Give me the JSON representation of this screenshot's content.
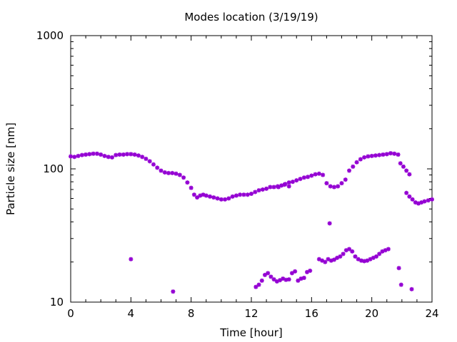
{
  "chart_data": {
    "type": "scatter",
    "title": "Modes location (3/19/19)",
    "xlabel": "Time [hour]",
    "ylabel": "Particle size [nm]",
    "xlim": [
      0,
      24
    ],
    "ylim": [
      10,
      1000
    ],
    "yscale": "log",
    "grid": false,
    "legend": "none",
    "x_ticks": [
      {
        "value": 0,
        "label": "0"
      },
      {
        "value": 4,
        "label": "4"
      },
      {
        "value": 8,
        "label": "8"
      },
      {
        "value": 12,
        "label": "12"
      },
      {
        "value": 16,
        "label": "16"
      },
      {
        "value": 20,
        "label": "20"
      },
      {
        "value": 24,
        "label": "24"
      }
    ],
    "y_ticks": [
      {
        "value": 10,
        "label": "10"
      },
      {
        "value": 100,
        "label": "100"
      },
      {
        "value": 1000,
        "label": "1000"
      }
    ],
    "marker_color": "#9400d3",
    "series": [
      {
        "points": [
          [
            0.0,
            124
          ],
          [
            0.25,
            123
          ],
          [
            0.5,
            125
          ],
          [
            0.75,
            127
          ],
          [
            1.0,
            128
          ],
          [
            1.25,
            129
          ],
          [
            1.5,
            130
          ],
          [
            1.75,
            130
          ],
          [
            2.0,
            128
          ],
          [
            2.25,
            125
          ],
          [
            2.5,
            123
          ],
          [
            2.75,
            122
          ],
          [
            3.0,
            127
          ],
          [
            3.25,
            128
          ],
          [
            3.5,
            128
          ],
          [
            3.75,
            129
          ],
          [
            4.0,
            129
          ],
          [
            4.25,
            128
          ],
          [
            4.5,
            126
          ],
          [
            4.75,
            123
          ],
          [
            5.0,
            119
          ],
          [
            5.25,
            114
          ],
          [
            5.5,
            108
          ],
          [
            5.75,
            102
          ],
          [
            6.0,
            97
          ],
          [
            6.25,
            94
          ],
          [
            6.5,
            93
          ],
          [
            6.75,
            93
          ],
          [
            7.0,
            92
          ],
          [
            7.25,
            90
          ],
          [
            7.5,
            86
          ],
          [
            7.75,
            79
          ],
          [
            8.0,
            72
          ],
          [
            8.2,
            64
          ],
          [
            8.4,
            61
          ],
          [
            8.6,
            63
          ],
          [
            8.8,
            64
          ],
          [
            9.0,
            63
          ],
          [
            9.25,
            62
          ],
          [
            9.5,
            61
          ],
          [
            9.75,
            60
          ],
          [
            10.0,
            59
          ],
          [
            10.25,
            59
          ],
          [
            10.5,
            60
          ],
          [
            10.75,
            62
          ],
          [
            11.0,
            63
          ],
          [
            11.25,
            64
          ],
          [
            11.5,
            64
          ],
          [
            11.75,
            64
          ],
          [
            12.0,
            65
          ],
          [
            12.25,
            67
          ],
          [
            12.5,
            69
          ],
          [
            12.75,
            70
          ],
          [
            13.0,
            71
          ],
          [
            13.25,
            73
          ],
          [
            13.5,
            73
          ],
          [
            13.75,
            74
          ],
          [
            14.0,
            75
          ],
          [
            14.25,
            77
          ],
          [
            14.5,
            79
          ],
          [
            14.75,
            80
          ],
          [
            15.0,
            82
          ],
          [
            15.25,
            84
          ],
          [
            15.5,
            86
          ],
          [
            15.75,
            87
          ],
          [
            16.0,
            89
          ],
          [
            16.25,
            91
          ],
          [
            16.5,
            92
          ],
          [
            16.75,
            90
          ],
          [
            17.0,
            78
          ],
          [
            17.25,
            74
          ],
          [
            17.5,
            73
          ],
          [
            17.75,
            74
          ],
          [
            18.0,
            78
          ],
          [
            18.25,
            83
          ],
          [
            18.5,
            97
          ],
          [
            18.75,
            104
          ],
          [
            19.0,
            112
          ],
          [
            19.25,
            118
          ],
          [
            19.5,
            122
          ],
          [
            19.75,
            124
          ],
          [
            20.0,
            125
          ],
          [
            20.25,
            126
          ],
          [
            20.5,
            127
          ],
          [
            20.75,
            128
          ],
          [
            21.0,
            129
          ],
          [
            21.25,
            131
          ],
          [
            21.5,
            130
          ],
          [
            21.75,
            128
          ],
          [
            21.9,
            110
          ],
          [
            22.1,
            104
          ],
          [
            22.3,
            97
          ],
          [
            22.5,
            91
          ],
          [
            22.3,
            66
          ],
          [
            22.5,
            62
          ],
          [
            22.7,
            59
          ],
          [
            22.9,
            56
          ],
          [
            23.1,
            55
          ],
          [
            23.3,
            56
          ],
          [
            23.5,
            57
          ],
          [
            23.75,
            58
          ],
          [
            24.0,
            59
          ],
          [
            13.8,
            73
          ],
          [
            14.2,
            76
          ],
          [
            14.5,
            74
          ],
          [
            12.3,
            13
          ],
          [
            12.5,
            13.5
          ],
          [
            12.7,
            14.5
          ],
          [
            12.9,
            16
          ],
          [
            13.1,
            16.5
          ],
          [
            13.3,
            15.5
          ],
          [
            13.5,
            14.8
          ],
          [
            13.7,
            14.3
          ],
          [
            13.9,
            14.6
          ],
          [
            14.1,
            15
          ],
          [
            14.3,
            14.7
          ],
          [
            14.5,
            14.8
          ],
          [
            14.7,
            16.5
          ],
          [
            14.9,
            17
          ],
          [
            15.1,
            14.5
          ],
          [
            15.3,
            15
          ],
          [
            15.5,
            15.2
          ],
          [
            15.7,
            16.8
          ],
          [
            15.9,
            17.2
          ],
          [
            16.5,
            21
          ],
          [
            16.7,
            20.5
          ],
          [
            16.9,
            20
          ],
          [
            17.1,
            21
          ],
          [
            17.3,
            20.5
          ],
          [
            17.5,
            20.8
          ],
          [
            17.7,
            21.5
          ],
          [
            17.9,
            22
          ],
          [
            18.1,
            23
          ],
          [
            18.3,
            24.5
          ],
          [
            18.5,
            25
          ],
          [
            18.7,
            24
          ],
          [
            18.9,
            22
          ],
          [
            19.1,
            21
          ],
          [
            19.3,
            20.5
          ],
          [
            19.5,
            20.3
          ],
          [
            19.7,
            20.5
          ],
          [
            19.9,
            21
          ],
          [
            20.1,
            21.5
          ],
          [
            20.3,
            22
          ],
          [
            20.5,
            23
          ],
          [
            20.7,
            24
          ],
          [
            20.9,
            24.5
          ],
          [
            21.1,
            25
          ],
          [
            4.0,
            21
          ],
          [
            6.8,
            12
          ],
          [
            17.2,
            39
          ],
          [
            21.8,
            18
          ],
          [
            21.95,
            13.5
          ],
          [
            22.65,
            12.5
          ]
        ]
      }
    ]
  }
}
